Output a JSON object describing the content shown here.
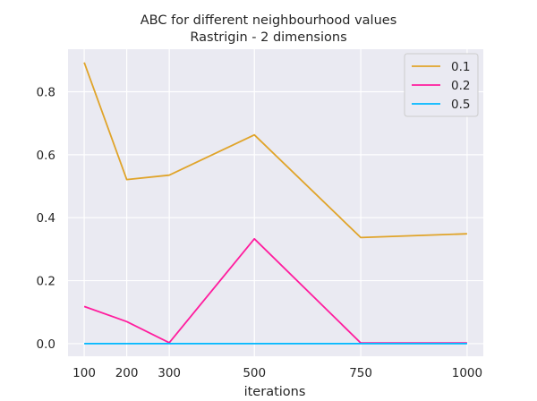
{
  "chart_data": {
    "type": "line",
    "title": "ABC for different neighbourhood values",
    "subtitle": "Rastrigin - 2 dimensions",
    "xlabel": "iterations",
    "ylabel": "",
    "x": [
      100,
      200,
      300,
      500,
      750,
      1000
    ],
    "xticks": [
      "100",
      "200",
      "300",
      "500",
      "750",
      "1000"
    ],
    "yticks": [
      "0.0",
      "0.2",
      "0.4",
      "0.6",
      "0.8"
    ],
    "xlim": [
      62,
      1038
    ],
    "ylim": [
      -0.04,
      0.935
    ],
    "grid": true,
    "legend_position": "top-right",
    "series": [
      {
        "name": "0.1",
        "color": "#e0a42a",
        "values": [
          0.893,
          0.521,
          0.535,
          0.663,
          0.337,
          0.349
        ]
      },
      {
        "name": "0.2",
        "color": "#ff1d9e",
        "values": [
          0.118,
          0.07,
          0.003,
          0.333,
          0.002,
          0.002
        ]
      },
      {
        "name": "0.5",
        "color": "#00b8ff",
        "values": [
          0.0,
          0.0,
          0.0,
          0.0,
          0.0,
          0.0
        ]
      }
    ]
  }
}
